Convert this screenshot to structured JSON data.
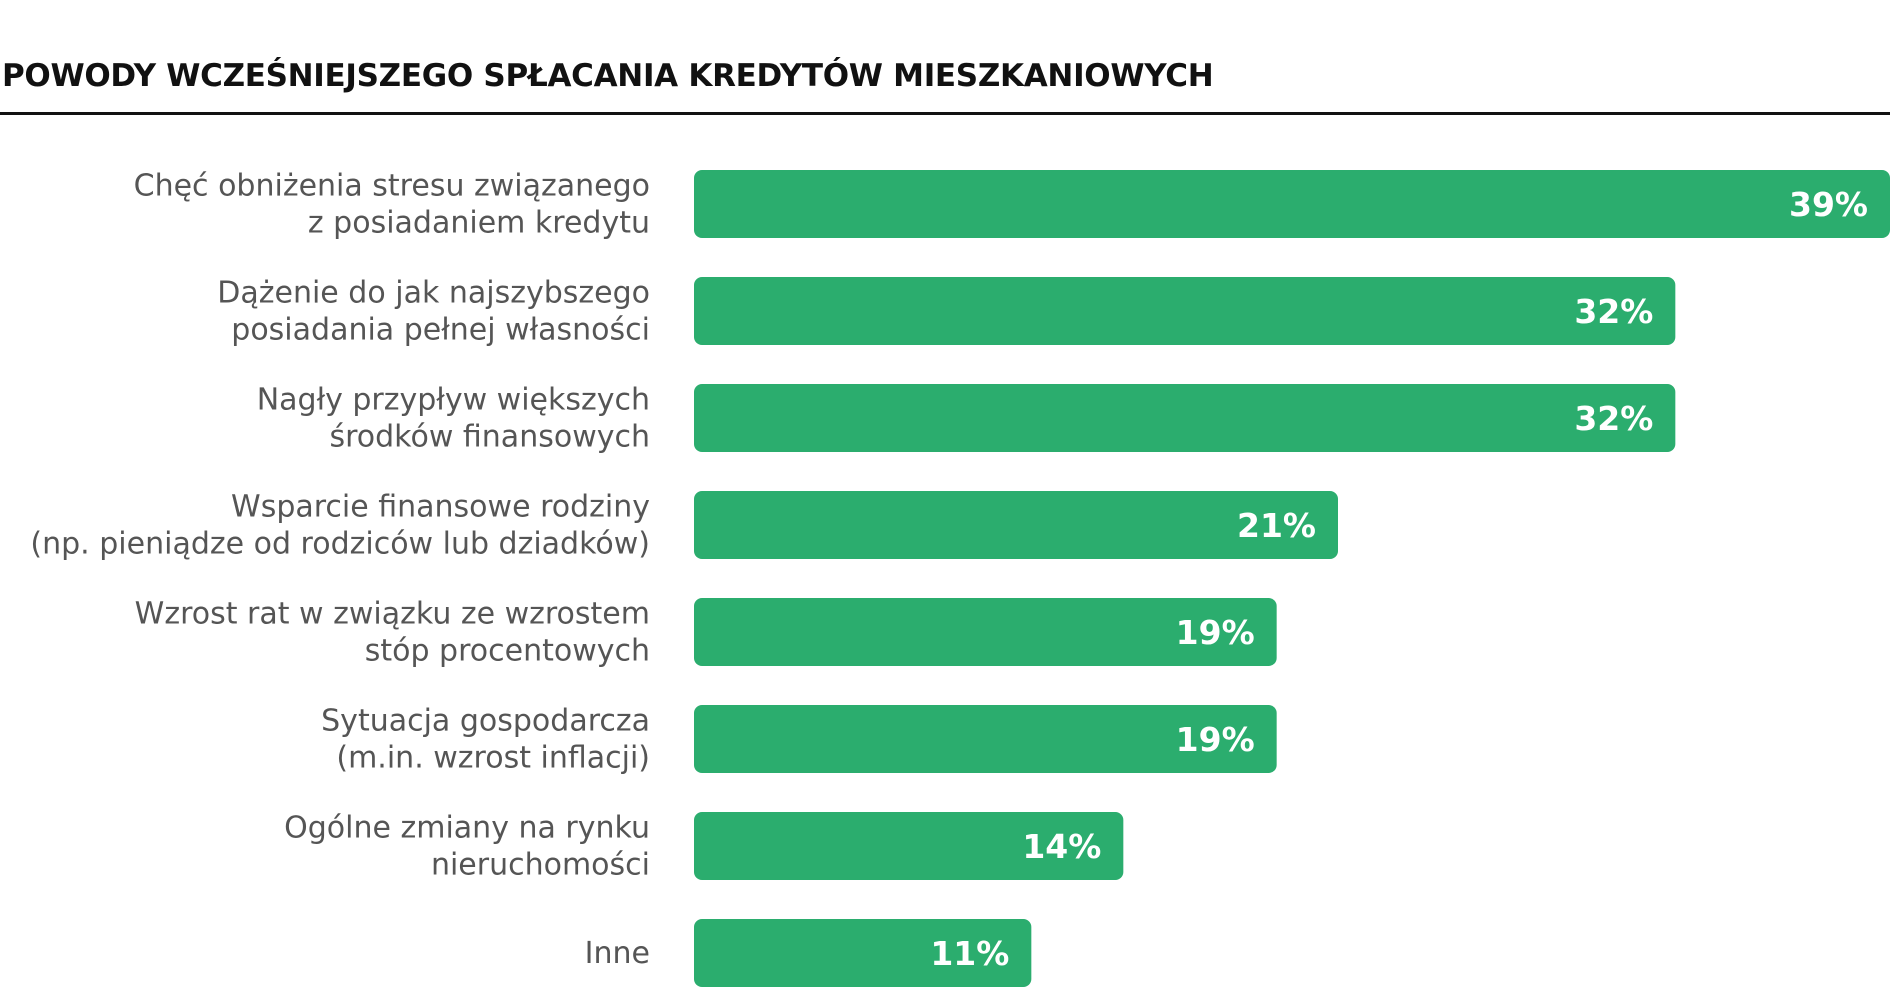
{
  "chart_data": {
    "type": "bar",
    "orientation": "horizontal",
    "title": "POWODY WCZEŚNIEJSZEGO SPŁACANIA KREDYTÓW MIESZKANIOWYCH",
    "categories": [
      [
        "Chęć obniżenia stresu związanego",
        "z posiadaniem kredytu"
      ],
      [
        "Dążenie do jak najszybszego",
        "posiadania pełnej własności"
      ],
      [
        "Nagły przypływ większych",
        "środków finansowych"
      ],
      [
        "Wsparcie finansowe rodziny",
        "(np. pieniądze od rodziców lub dziadków)"
      ],
      [
        "Wzrost rat w związku ze wzrostem",
        "stóp procentowych"
      ],
      [
        "Sytuacja gospodarcza",
        "(m.in. wzrost inflacji)"
      ],
      [
        "Ogólne zmiany na rynku",
        "nieruchomości"
      ],
      [
        "Inne"
      ]
    ],
    "values": [
      39,
      32,
      32,
      21,
      19,
      19,
      14,
      11
    ],
    "value_labels": [
      "39%",
      "32%",
      "32%",
      "21%",
      "19%",
      "19%",
      "14%",
      "11%"
    ],
    "xlim": [
      0,
      39
    ],
    "grid": false,
    "legend": "none",
    "xlabel": "",
    "ylabel": "",
    "colors": {
      "bar": "#2bad6e",
      "category_text": "#555555",
      "value_text": "#ffffff",
      "title": "#111111"
    }
  }
}
